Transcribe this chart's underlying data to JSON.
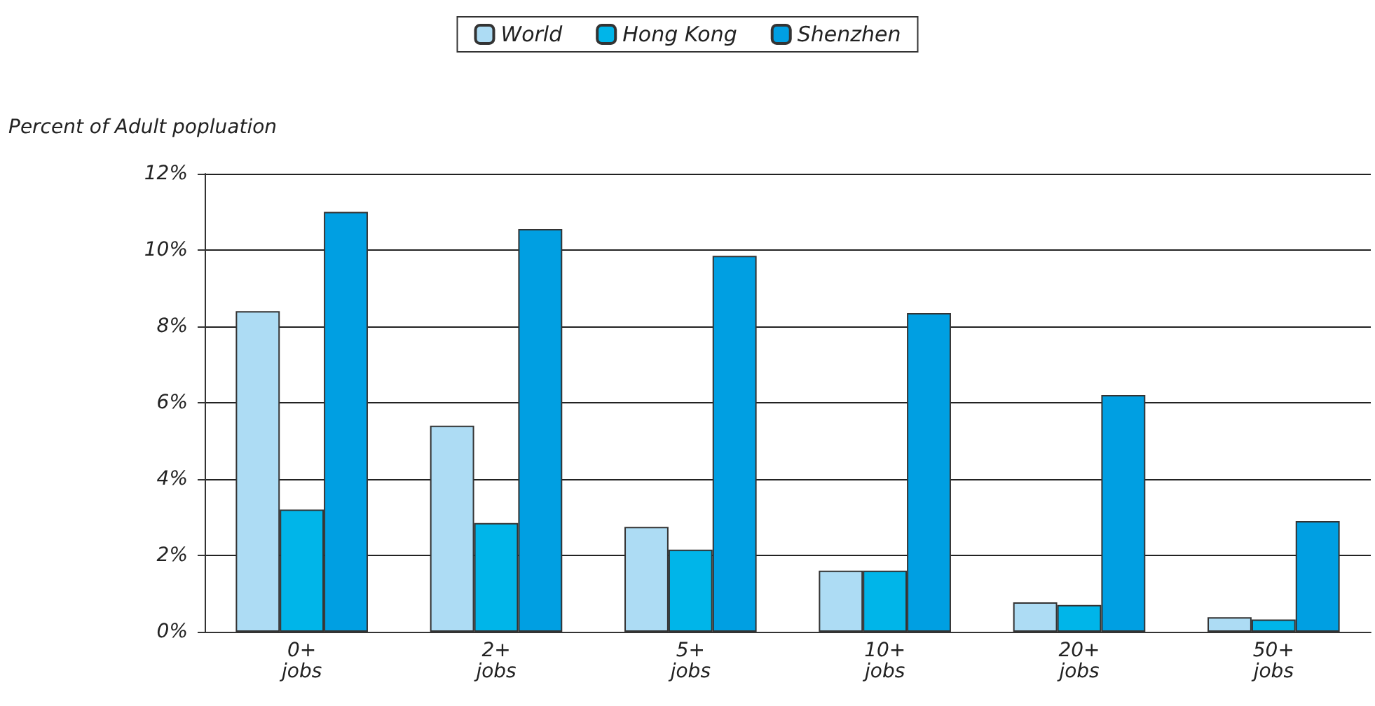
{
  "chart_data": {
    "type": "bar",
    "ylabel": "Percent of Adult popluation",
    "categories": [
      "0+\njobs",
      "2+\njobs",
      "5+\njobs",
      "10+\njobs",
      "20+\njobs",
      "50+\njobs"
    ],
    "series": [
      {
        "name": "World",
        "color": "#addcf4",
        "values": [
          8.4,
          5.4,
          2.75,
          1.6,
          0.77,
          0.38
        ]
      },
      {
        "name": "Hong Kong",
        "color": "#00b5e9",
        "values": [
          3.2,
          2.85,
          2.15,
          1.6,
          0.7,
          0.32
        ]
      },
      {
        "name": "Shenzhen",
        "color": "#009fe2",
        "values": [
          11.0,
          10.55,
          9.85,
          8.35,
          6.2,
          2.9
        ]
      }
    ],
    "ylim": [
      0,
      12
    ],
    "yticks": [
      {
        "value": 0,
        "label": "0%"
      },
      {
        "value": 2,
        "label": "2%"
      },
      {
        "value": 4,
        "label": "4%"
      },
      {
        "value": 6,
        "label": "6%"
      },
      {
        "value": 8,
        "label": "8%"
      },
      {
        "value": 10,
        "label": "10%"
      },
      {
        "value": 12,
        "label": "12%"
      }
    ],
    "grid": "y",
    "legend": "top"
  }
}
